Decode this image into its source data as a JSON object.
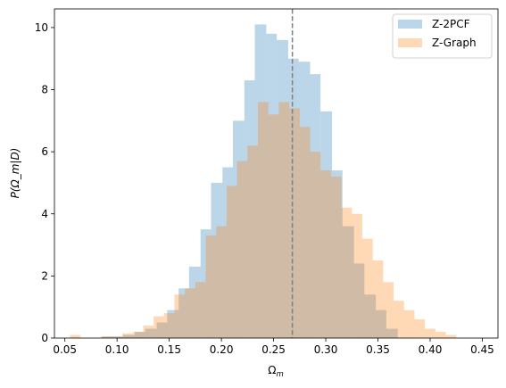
{
  "chart_data": {
    "type": "histogram",
    "xlabel": "Ω",
    "xlabel_sub": "m",
    "ylabel": "P(Ω_m|D)",
    "xlim": [
      0.04,
      0.465
    ],
    "ylim": [
      0,
      10.6
    ],
    "x_ticks": [
      0.05,
      0.1,
      0.15,
      0.2,
      0.25,
      0.3,
      0.35,
      0.4,
      0.45
    ],
    "x_tick_labels": [
      "0.05",
      "0.10",
      "0.15",
      "0.20",
      "0.25",
      "0.30",
      "0.35",
      "0.40",
      "0.45"
    ],
    "y_ticks": [
      0,
      2,
      4,
      6,
      8,
      10
    ],
    "y_tick_labels": [
      "0",
      "2",
      "4",
      "6",
      "8",
      "10"
    ],
    "vline": {
      "x": 0.268,
      "style": "dashed",
      "color": "#808080"
    },
    "legend": {
      "placement": "top-right"
    },
    "series": [
      {
        "name": "Z-2PCF",
        "color": "#1f77b4",
        "alpha": 0.3,
        "bin_edges": [
          0.085,
          0.096,
          0.106,
          0.117,
          0.127,
          0.138,
          0.148,
          0.159,
          0.169,
          0.18,
          0.19,
          0.201,
          0.211,
          0.222,
          0.232,
          0.243,
          0.253,
          0.264,
          0.274,
          0.285,
          0.295,
          0.306,
          0.316,
          0.327,
          0.337,
          0.348,
          0.358,
          0.369
        ],
        "values": [
          0.05,
          0.05,
          0.1,
          0.2,
          0.3,
          0.5,
          0.9,
          1.6,
          2.3,
          3.5,
          5.0,
          5.5,
          7.0,
          8.3,
          10.1,
          9.8,
          9.6,
          9.0,
          8.9,
          8.5,
          7.3,
          5.4,
          3.6,
          2.4,
          1.4,
          0.9,
          0.3
        ]
      },
      {
        "name": "Z-Graph",
        "color": "#ff7f0e",
        "alpha": 0.3,
        "bin_edges": [
          0.055,
          0.065,
          0.075,
          0.085,
          0.095,
          0.105,
          0.115,
          0.125,
          0.135,
          0.145,
          0.155,
          0.165,
          0.175,
          0.185,
          0.195,
          0.205,
          0.215,
          0.225,
          0.235,
          0.245,
          0.255,
          0.265,
          0.275,
          0.285,
          0.295,
          0.305,
          0.315,
          0.325,
          0.335,
          0.345,
          0.355,
          0.365,
          0.375,
          0.385,
          0.395,
          0.405,
          0.415,
          0.425
        ],
        "values": [
          0.1,
          0.0,
          0.0,
          0.05,
          0.05,
          0.15,
          0.2,
          0.4,
          0.7,
          0.8,
          1.4,
          1.6,
          1.8,
          3.3,
          3.6,
          4.9,
          5.7,
          6.2,
          7.6,
          7.2,
          7.6,
          7.4,
          6.8,
          6.0,
          5.4,
          5.2,
          4.2,
          4.0,
          3.2,
          2.5,
          1.8,
          1.2,
          0.9,
          0.6,
          0.3,
          0.2,
          0.1
        ]
      }
    ]
  }
}
